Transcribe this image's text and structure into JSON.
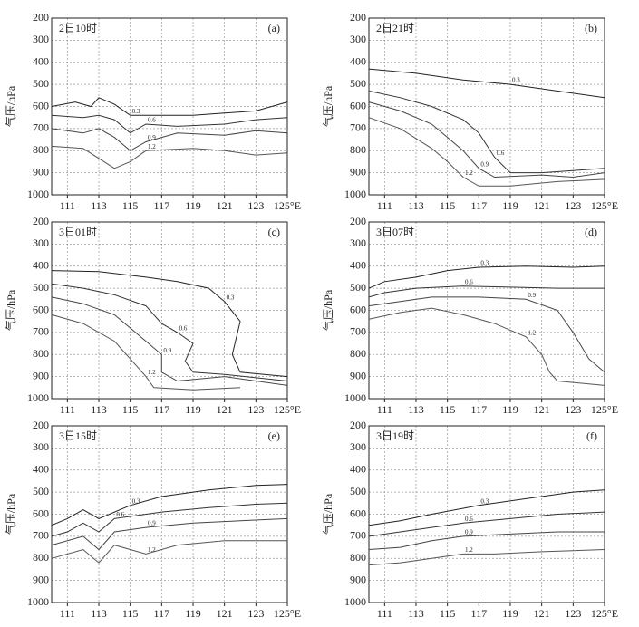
{
  "chart_data": [
    {
      "type": "contour",
      "title": "2日10时",
      "panel_label": "(a)",
      "ylabel": "气压/hPa",
      "xlim": [
        110,
        125
      ],
      "ylim": [
        200,
        1000
      ],
      "y_inverted": true,
      "grid": true,
      "xticks": [
        111,
        113,
        115,
        117,
        119,
        121,
        123,
        {
          "value": 125,
          "label": "125°E"
        }
      ],
      "yticks": [
        200,
        300,
        400,
        500,
        600,
        700,
        800,
        900,
        1000
      ],
      "series": [
        {
          "name": "0.3",
          "color": "#222222",
          "x": [
            110,
            111.5,
            112.5,
            113,
            114,
            115,
            117,
            119,
            121,
            123,
            125
          ],
          "y": [
            600,
            580,
            600,
            560,
            590,
            640,
            640,
            640,
            630,
            620,
            580
          ]
        },
        {
          "name": "0.6",
          "color": "#333333",
          "x": [
            110,
            112,
            113,
            114,
            115,
            116,
            118,
            121,
            123,
            125
          ],
          "y": [
            640,
            650,
            640,
            660,
            720,
            680,
            690,
            680,
            660,
            650
          ]
        },
        {
          "name": "0.9",
          "color": "#444444",
          "x": [
            110,
            112,
            113,
            114,
            115,
            116,
            118,
            121,
            123,
            125
          ],
          "y": [
            700,
            720,
            700,
            740,
            800,
            760,
            720,
            730,
            710,
            720
          ]
        },
        {
          "name": "1.2",
          "color": "#555555",
          "x": [
            110,
            112,
            114,
            115,
            116,
            119,
            121,
            123,
            125
          ],
          "y": [
            780,
            790,
            880,
            850,
            800,
            790,
            800,
            820,
            810
          ]
        }
      ]
    },
    {
      "type": "contour",
      "title": "2日21时",
      "panel_label": "(b)",
      "ylabel": "气压/hPa",
      "xlim": [
        110,
        125
      ],
      "ylim": [
        200,
        1000
      ],
      "y_inverted": true,
      "grid": true,
      "xticks": [
        111,
        113,
        115,
        117,
        119,
        121,
        123,
        {
          "value": 125,
          "label": "125°E"
        }
      ],
      "yticks": [
        200,
        300,
        400,
        500,
        600,
        700,
        800,
        900,
        1000
      ],
      "series": [
        {
          "name": "0.3",
          "color": "#222222",
          "x": [
            110,
            113,
            116,
            119,
            121,
            123,
            125
          ],
          "y": [
            430,
            450,
            480,
            500,
            520,
            540,
            560
          ]
        },
        {
          "name": "0.6",
          "color": "#333333",
          "x": [
            110,
            112,
            114,
            116,
            117,
            118,
            119,
            121,
            123,
            125
          ],
          "y": [
            530,
            560,
            600,
            660,
            720,
            830,
            900,
            900,
            890,
            880
          ]
        },
        {
          "name": "0.9",
          "color": "#444444",
          "x": [
            110,
            112,
            114,
            115,
            116,
            117,
            118,
            121,
            123,
            125
          ],
          "y": [
            580,
            620,
            680,
            740,
            800,
            880,
            920,
            910,
            920,
            900
          ]
        },
        {
          "name": "1.2",
          "color": "#555555",
          "x": [
            110,
            112,
            114,
            115,
            116,
            117,
            119,
            122,
            125
          ],
          "y": [
            650,
            700,
            790,
            850,
            920,
            960,
            960,
            940,
            930
          ]
        }
      ]
    },
    {
      "type": "contour",
      "title": "3日01时",
      "panel_label": "(c)",
      "ylabel": "气压/hPa",
      "xlim": [
        110,
        125
      ],
      "ylim": [
        200,
        1000
      ],
      "y_inverted": true,
      "grid": true,
      "xticks": [
        111,
        113,
        115,
        117,
        119,
        121,
        123,
        {
          "value": 125,
          "label": "125°E"
        }
      ],
      "yticks": [
        200,
        300,
        400,
        500,
        600,
        700,
        800,
        900,
        1000
      ],
      "series": [
        {
          "name": "0.3",
          "color": "#222222",
          "x": [
            110,
            113,
            116,
            118,
            120,
            121,
            122,
            121.5,
            122,
            125
          ],
          "y": [
            420,
            425,
            450,
            470,
            500,
            560,
            650,
            800,
            880,
            900
          ]
        },
        {
          "name": "0.6",
          "color": "#333333",
          "x": [
            110,
            112,
            114,
            116,
            117,
            118,
            119,
            118.5,
            119,
            121,
            125
          ],
          "y": [
            480,
            500,
            530,
            580,
            660,
            700,
            750,
            830,
            880,
            890,
            920
          ]
        },
        {
          "name": "0.9",
          "color": "#444444",
          "x": [
            110,
            112,
            114,
            115,
            116,
            117,
            117,
            118,
            121,
            125
          ],
          "y": [
            540,
            570,
            620,
            680,
            740,
            800,
            880,
            920,
            900,
            940
          ]
        },
        {
          "name": "1.2",
          "color": "#555555",
          "x": [
            110,
            112,
            114,
            115,
            116,
            116.5,
            119,
            122
          ],
          "y": [
            620,
            660,
            740,
            820,
            900,
            950,
            960,
            950
          ]
        }
      ]
    },
    {
      "type": "contour",
      "title": "3日07时",
      "panel_label": "(d)",
      "ylabel": "气压/hPa",
      "xlim": [
        110,
        125
      ],
      "ylim": [
        200,
        1000
      ],
      "y_inverted": true,
      "grid": true,
      "xticks": [
        111,
        113,
        115,
        117,
        119,
        121,
        123,
        {
          "value": 125,
          "label": "125°E"
        }
      ],
      "yticks": [
        200,
        300,
        400,
        500,
        600,
        700,
        800,
        900,
        1000
      ],
      "series": [
        {
          "name": "0.3",
          "color": "#222222",
          "x": [
            110,
            111,
            113,
            115,
            117,
            120,
            123,
            125
          ],
          "y": [
            500,
            470,
            450,
            420,
            405,
            400,
            405,
            400
          ]
        },
        {
          "name": "0.6",
          "color": "#333333",
          "x": [
            110,
            111,
            113,
            116,
            119,
            122,
            125
          ],
          "y": [
            540,
            520,
            500,
            490,
            495,
            500,
            500
          ]
        },
        {
          "name": "0.9",
          "color": "#444444",
          "x": [
            110,
            112,
            114,
            117,
            120,
            122,
            123,
            124,
            125
          ],
          "y": [
            580,
            560,
            540,
            540,
            550,
            600,
            700,
            820,
            880
          ]
        },
        {
          "name": "1.2",
          "color": "#555555",
          "x": [
            110,
            112,
            114,
            116,
            118,
            120,
            121,
            121.5,
            122,
            125
          ],
          "y": [
            640,
            610,
            590,
            620,
            660,
            720,
            800,
            880,
            920,
            940
          ]
        }
      ]
    },
    {
      "type": "contour",
      "title": "3日15时",
      "panel_label": "(e)",
      "ylabel": "气压/hPa",
      "xlim": [
        110,
        125
      ],
      "ylim": [
        200,
        1000
      ],
      "y_inverted": true,
      "grid": true,
      "xticks": [
        111,
        113,
        115,
        117,
        119,
        121,
        123,
        {
          "value": 125,
          "label": "125°E"
        }
      ],
      "yticks": [
        200,
        300,
        400,
        500,
        600,
        700,
        800,
        900,
        1000
      ],
      "series": [
        {
          "name": "0.3",
          "color": "#222222",
          "x": [
            110,
            111,
            112,
            113,
            115,
            117,
            120,
            123,
            125
          ],
          "y": [
            650,
            620,
            580,
            620,
            560,
            520,
            490,
            470,
            465
          ]
        },
        {
          "name": "0.6",
          "color": "#333333",
          "x": [
            110,
            111,
            112,
            113,
            114,
            117,
            120,
            123,
            125
          ],
          "y": [
            700,
            680,
            640,
            680,
            620,
            590,
            570,
            555,
            550
          ]
        },
        {
          "name": "0.9",
          "color": "#444444",
          "x": [
            110,
            112,
            113,
            114,
            116,
            119,
            122,
            125
          ],
          "y": [
            740,
            700,
            760,
            680,
            660,
            640,
            630,
            620
          ]
        },
        {
          "name": "1.2",
          "color": "#555555",
          "x": [
            110,
            112,
            113,
            114,
            116,
            118,
            121,
            125
          ],
          "y": [
            800,
            760,
            820,
            740,
            780,
            740,
            720,
            720
          ]
        }
      ]
    },
    {
      "type": "contour",
      "title": "3日19时",
      "panel_label": "(f)",
      "ylabel": "气压/hPa",
      "xlim": [
        110,
        125
      ],
      "ylim": [
        200,
        1000
      ],
      "y_inverted": true,
      "grid": true,
      "xticks": [
        111,
        113,
        115,
        117,
        119,
        121,
        123,
        {
          "value": 125,
          "label": "125°E"
        }
      ],
      "yticks": [
        200,
        300,
        400,
        500,
        600,
        700,
        800,
        900,
        1000
      ],
      "series": [
        {
          "name": "0.3",
          "color": "#222222",
          "x": [
            110,
            112,
            114,
            117,
            120,
            123,
            125
          ],
          "y": [
            650,
            630,
            600,
            560,
            530,
            500,
            490
          ]
        },
        {
          "name": "0.6",
          "color": "#333333",
          "x": [
            110,
            112,
            114,
            116,
            119,
            122,
            125
          ],
          "y": [
            700,
            680,
            660,
            640,
            620,
            600,
            590
          ]
        },
        {
          "name": "0.9",
          "color": "#444444",
          "x": [
            110,
            112,
            114,
            116,
            119,
            122,
            125
          ],
          "y": [
            760,
            750,
            720,
            700,
            690,
            680,
            680
          ]
        },
        {
          "name": "1.2",
          "color": "#555555",
          "x": [
            110,
            112,
            114,
            116,
            118,
            121,
            125
          ],
          "y": [
            830,
            820,
            800,
            780,
            780,
            770,
            760
          ]
        }
      ]
    }
  ]
}
